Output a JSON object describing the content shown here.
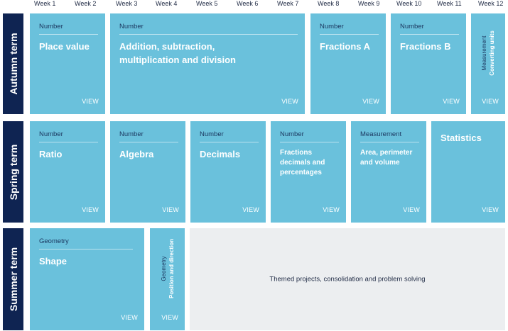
{
  "weeks": [
    "Week 1",
    "Week 2",
    "Week 3",
    "Week 4",
    "Week 5",
    "Week 6",
    "Week 7",
    "Week 8",
    "Week 9",
    "Week 10",
    "Week 11",
    "Week 12"
  ],
  "terms": {
    "autumn": "Autumn term",
    "spring": "Spring term",
    "summer": "Summer term"
  },
  "view_label": "VIEW",
  "autumn": [
    {
      "category": "Number",
      "title": "Place value"
    },
    {
      "category": "Number",
      "title": "Addition, subtraction, multiplication and division"
    },
    {
      "category": "Number",
      "title": "Fractions A"
    },
    {
      "category": "Number",
      "title": "Fractions B"
    },
    {
      "category": "Measurement",
      "title": "Converting units"
    }
  ],
  "spring": [
    {
      "category": "Number",
      "title": "Ratio"
    },
    {
      "category": "Number",
      "title": "Algebra"
    },
    {
      "category": "Number",
      "title": "Decimals"
    },
    {
      "category": "Number",
      "title": "Fractions decimals and percentages"
    },
    {
      "category": "Measurement",
      "title": "Area, perimeter and volume"
    },
    {
      "category": "",
      "title": "Statistics"
    }
  ],
  "summer": [
    {
      "category": "Geometry",
      "title": "Shape"
    },
    {
      "category": "Geometry",
      "title": "Position and direction"
    }
  ],
  "themed": "Themed projects, consolidation and problem solving"
}
